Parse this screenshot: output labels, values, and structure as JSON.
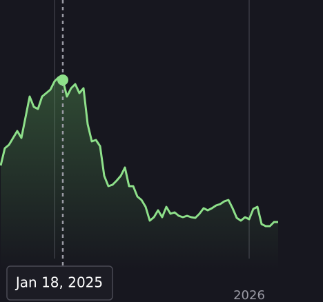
{
  "chart_data": {
    "type": "area",
    "values": [
      160,
      185,
      190,
      200,
      210,
      200,
      230,
      260,
      245,
      242,
      260,
      265,
      270,
      282,
      288,
      284,
      260,
      272,
      278,
      265,
      272,
      220,
      195,
      197,
      188,
      145,
      130,
      132,
      138,
      145,
      157,
      130,
      130,
      115,
      110,
      100,
      80,
      85,
      95,
      85,
      100,
      90,
      92,
      87,
      85,
      87,
      85,
      84,
      90,
      98,
      95,
      98,
      102,
      104,
      108,
      110,
      98,
      84,
      80,
      85,
      82,
      97,
      100,
      75,
      72,
      72,
      78,
      78
    ],
    "ylim": [
      0,
      400
    ],
    "color": "#8ee08a",
    "xticks": [
      {
        "value": 13,
        "label": null
      },
      {
        "value": 60,
        "label": "2026"
      }
    ],
    "hover": {
      "index": 15,
      "label": "Jan 18, 2025"
    }
  }
}
